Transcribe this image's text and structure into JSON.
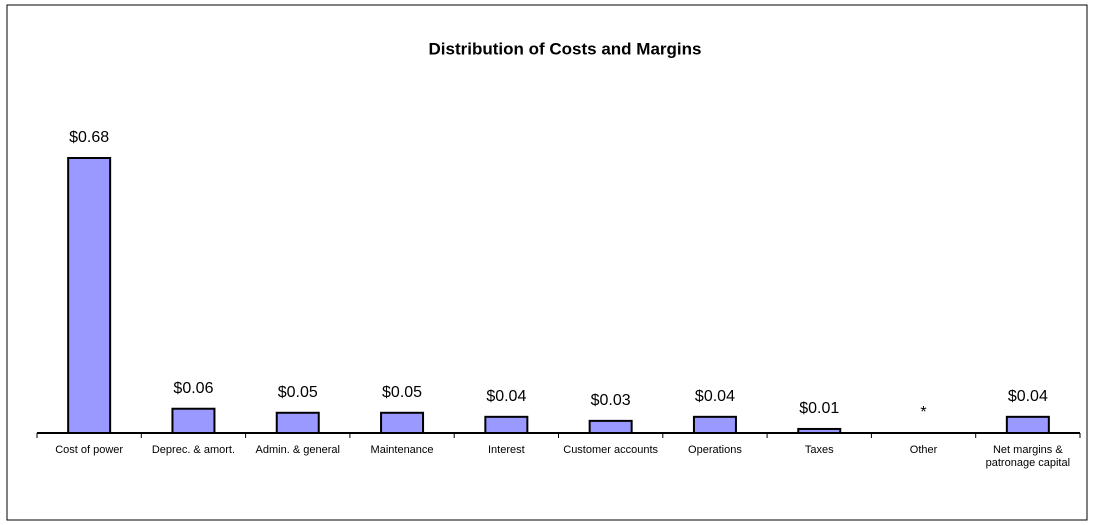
{
  "chart_data": {
    "type": "bar",
    "title": "Distribution of Costs and Margins",
    "categories": [
      "Cost of power",
      "Deprec. & amort.",
      "Admin. & general",
      "Maintenance",
      "Interest",
      "Customer accounts",
      "Operations",
      "Taxes",
      "Other",
      "Net margins & patronage capital"
    ],
    "values": [
      0.68,
      0.06,
      0.05,
      0.05,
      0.04,
      0.03,
      0.04,
      0.01,
      0,
      0.04
    ],
    "value_labels": [
      "$0.68",
      "$0.06",
      "$0.05",
      "$0.05",
      "$0.04",
      "$0.03",
      "$0.04",
      "$0.01",
      "*",
      "$0.04"
    ],
    "color": "#9999ff"
  }
}
